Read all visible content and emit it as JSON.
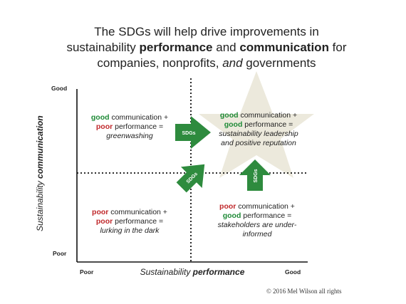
{
  "title": {
    "line1": "The SDGs will help drive improvements in",
    "line2_prefix": "sustainability ",
    "line2_bold1": "performance",
    "line2_mid": " and ",
    "line2_bold2": "communication",
    "line2_suffix": " for",
    "line3_prefix": "companies, nonprofits, ",
    "line3_italic": "and",
    "line3_suffix": " governments"
  },
  "axes": {
    "y_top": "Good",
    "y_bottom": "Poor",
    "x_left": "Poor",
    "x_right": "Good",
    "y_title_prefix": "Sustainability ",
    "y_title_bold": "communication",
    "x_title_prefix": "Sustainability ",
    "x_title_bold": "performance"
  },
  "quadrants": {
    "top_left": {
      "l1_colored": "good",
      "l1_rest": " communication +",
      "l2_colored": "poor",
      "l2_rest": " performance =",
      "l3": "greenwashing"
    },
    "top_right": {
      "l1_colored": "good",
      "l1_rest": " communication +",
      "l2_colored": "good",
      "l2_rest": " performance =",
      "l3": "sustainability leadership",
      "l4": "and positive reputation"
    },
    "bottom_left": {
      "l1_colored": "poor",
      "l1_rest": " communication +",
      "l2_colored": "poor",
      "l2_rest": " performance =",
      "l3": "lurking in the dark"
    },
    "bottom_right": {
      "l1_colored": "poor",
      "l1_rest": " communication +",
      "l2_colored": "good",
      "l2_rest": " performance =",
      "l3": "stakeholders are under-",
      "l4": "informed"
    }
  },
  "arrows": {
    "label": "SDGs"
  },
  "colors": {
    "arrow_green": "#2e8b3e",
    "good_green": "#1e8a36",
    "poor_red": "#c0282b",
    "star": "#ece9dc"
  },
  "copyright": "© 2016 Mel Wilson all rights"
}
